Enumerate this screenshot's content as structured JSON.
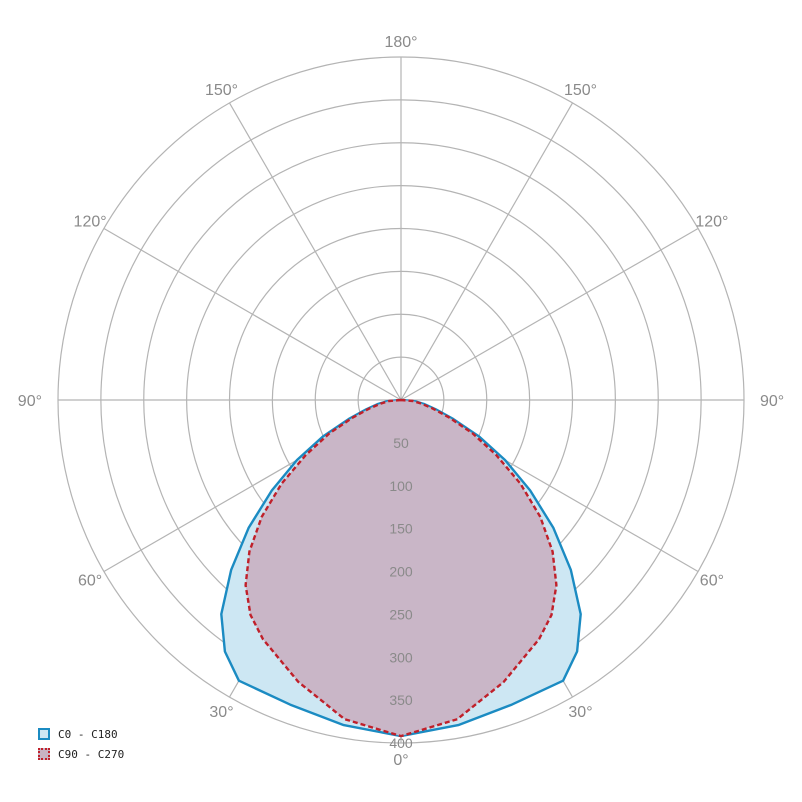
{
  "chart_data": {
    "type": "polar",
    "title": "",
    "angle_unit": "deg",
    "angle_labels": {
      "0": "0°",
      "30": "30°",
      "60": "60°",
      "90": "90°",
      "120": "120°",
      "150": "150°",
      "180": "180°"
    },
    "radial_ticks": [
      50,
      100,
      150,
      200,
      250,
      300,
      350,
      400
    ],
    "radial_range": [
      0,
      400
    ],
    "grid": true,
    "legend_position": "bottom-left",
    "series": [
      {
        "name": "C0 - C180",
        "stroke_color": "#1b8bc2",
        "fill_color": "#cde7f3",
        "line_style": "solid",
        "angles": [
          0,
          10,
          20,
          30,
          35,
          40,
          45,
          50,
          55,
          60,
          65,
          70,
          75,
          80,
          85,
          90
        ],
        "values": [
          392,
          385,
          378,
          378,
          358,
          326,
          280,
          232,
          184,
          140,
          100,
          65,
          42,
          28,
          16,
          0
        ]
      },
      {
        "name": "C90 - C270",
        "stroke_color": "#c0202a",
        "fill_color": "#c8b3c4",
        "line_style": "dashed",
        "angles": [
          0,
          10,
          20,
          30,
          35,
          40,
          45,
          50,
          55,
          60,
          65,
          70,
          75,
          80,
          85,
          90
        ],
        "values": [
          392,
          378,
          350,
          322,
          306,
          282,
          250,
          212,
          170,
          128,
          92,
          60,
          38,
          24,
          14,
          0
        ]
      }
    ]
  }
}
